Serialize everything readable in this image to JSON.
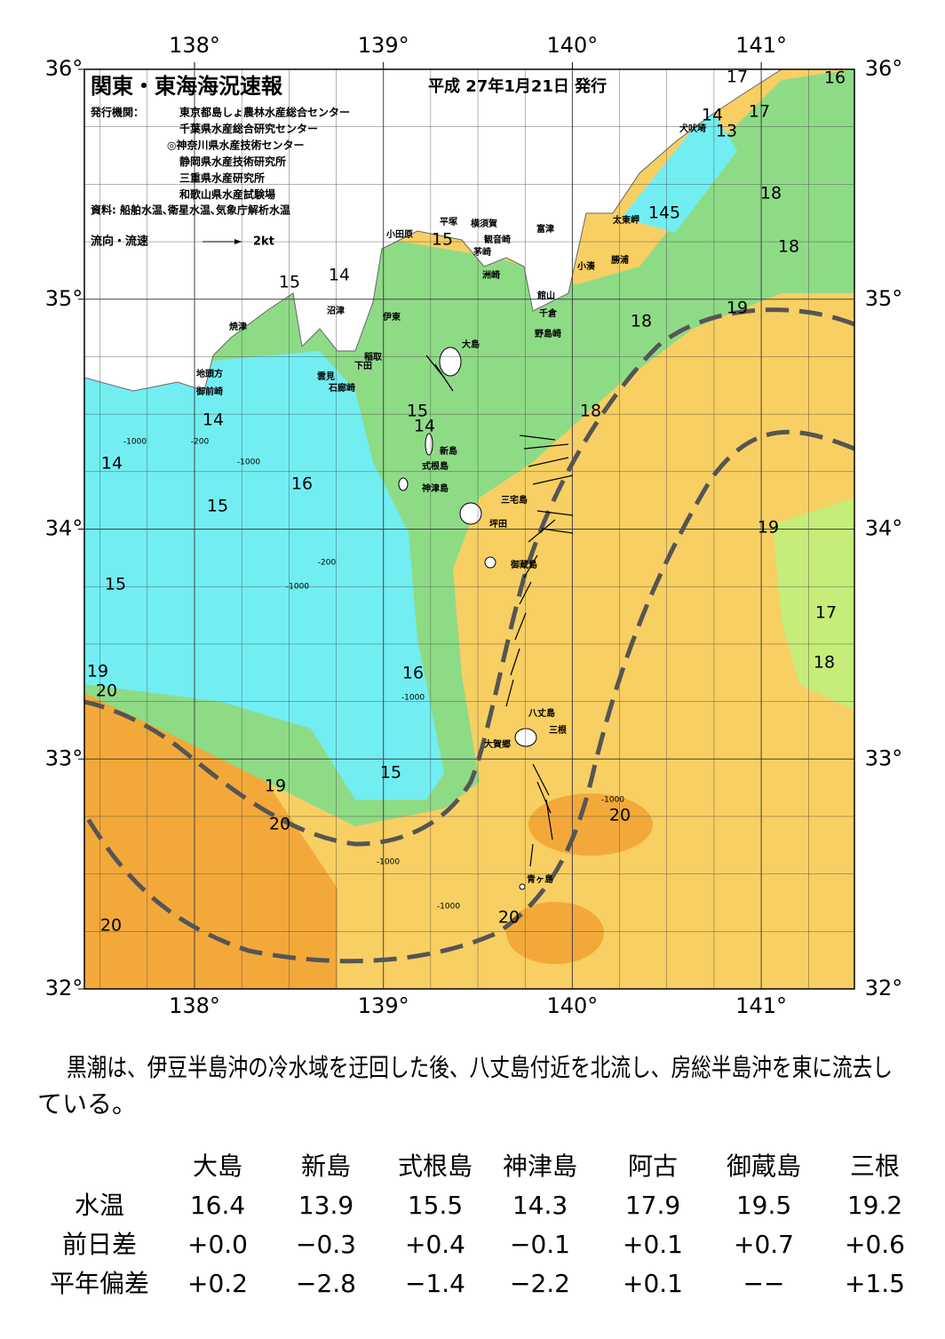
{
  "header": {
    "title": "関東・東海海況速報",
    "date": "平成 27年1月21日 発行",
    "agency_label": "発行機関：",
    "agencies": [
      "東京都島しょ農林水産総合センター",
      "千葉県水産総合研究センター",
      "◎神奈川県水産技術センター",
      "静岡県水産技術研究所",
      "三重県水産研究所",
      "和歌山県水産試験場"
    ],
    "source": "資料: 船舶水温､衛星水温､気象庁解析水温",
    "flow_legend": "流向・流速",
    "flow_unit": "2kt"
  },
  "map": {
    "lon_ticks": [
      {
        "value": 138,
        "label": "138°"
      },
      {
        "value": 139,
        "label": "139°"
      },
      {
        "value": 140,
        "label": "140°"
      },
      {
        "value": 141,
        "label": "141°"
      }
    ],
    "lat_ticks": [
      {
        "value": 36,
        "label": "36°"
      },
      {
        "value": 35,
        "label": "35°"
      },
      {
        "value": 34,
        "label": "34°"
      },
      {
        "value": 33,
        "label": "33°"
      },
      {
        "value": 32,
        "label": "32°"
      }
    ],
    "places": [
      "小田原",
      "平塚",
      "横須賀",
      "観音崎",
      "富津",
      "茅崎",
      "洲崎",
      "館山",
      "千倉",
      "野島崎",
      "太東岬",
      "勝浦",
      "小湊",
      "犬吠埼",
      "沼津",
      "伊東",
      "焼津",
      "大島",
      "稲取",
      "下田",
      "雲見",
      "石廊崎",
      "地頭方",
      "御前崎",
      "新島",
      "式根島",
      "神津島",
      "三宅島",
      "坪田",
      "御蔵島",
      "八丈島",
      "三根",
      "大賀郷",
      "青ヶ島"
    ],
    "contour_labels": [
      "17",
      "16",
      "14",
      "17",
      "13",
      "18",
      "145",
      "18",
      "19",
      "18",
      "18",
      "15",
      "14",
      "15",
      "14",
      "14",
      "15",
      "16",
      "14",
      "15",
      "19",
      "17",
      "18",
      "15",
      "16",
      "19",
      "20",
      "15",
      "19",
      "20",
      "20",
      "20",
      "20"
    ],
    "depth_labels": [
      "-1000",
      "-200",
      "-1000",
      "-200",
      "-1000",
      "-1000",
      "-1000",
      "-1000",
      "-1000"
    ]
  },
  "summary": "黒潮は、伊豆半島沖の冷水域を迂回した後、八丈島付近を北流し、房総半島沖を東に流去している。",
  "table": {
    "columns": [
      "大島",
      "新島",
      "式根島",
      "神津島",
      "阿古",
      "御蔵島",
      "三根"
    ],
    "rows": [
      {
        "label": "水温",
        "cells": [
          "16.4",
          "13.9",
          "15.5",
          "14.3",
          "17.9",
          "19.5",
          "19.2"
        ]
      },
      {
        "label": "前日差",
        "cells": [
          "+0.0",
          "−0.3",
          "+0.4",
          "−0.1",
          "+0.1",
          "+0.7",
          "+0.6"
        ]
      },
      {
        "label": "平年偏差",
        "cells": [
          "+0.2",
          "−2.8",
          "−1.4",
          "−2.2",
          "+0.1",
          "−−",
          "+1.5"
        ]
      }
    ]
  }
}
